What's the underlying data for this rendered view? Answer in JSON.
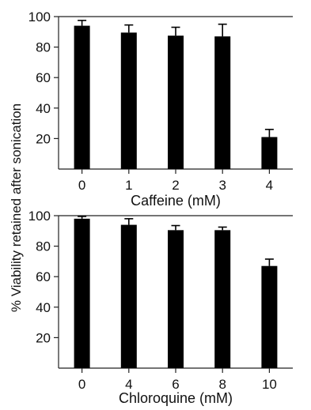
{
  "ylabel": "% Viability retained after sonication",
  "chart_data": [
    {
      "type": "bar",
      "title": "",
      "xlabel": "Caffeine (mM)",
      "ylabel": "% Viability retained after sonication",
      "categories": [
        "0",
        "1",
        "2",
        "3",
        "4"
      ],
      "values": [
        94,
        89.5,
        87.5,
        87,
        21
      ],
      "errors": [
        3.5,
        5,
        5.5,
        8,
        5
      ],
      "ylim": [
        0,
        100
      ],
      "yticks": [
        "20",
        "40",
        "60",
        "80",
        "100"
      ],
      "grid": false,
      "bar_color": "#000000"
    },
    {
      "type": "bar",
      "title": "",
      "xlabel": "Chloroquine (mM)",
      "ylabel": "% Viability retained after sonication",
      "categories": [
        "0",
        "4",
        "6",
        "8",
        "10"
      ],
      "values": [
        98,
        94,
        90.5,
        90.5,
        67
      ],
      "errors": [
        1.5,
        4,
        3,
        2,
        4.5
      ],
      "ylim": [
        0,
        100
      ],
      "yticks": [
        "20",
        "40",
        "60",
        "80",
        "100"
      ],
      "grid": false,
      "bar_color": "#000000"
    }
  ]
}
